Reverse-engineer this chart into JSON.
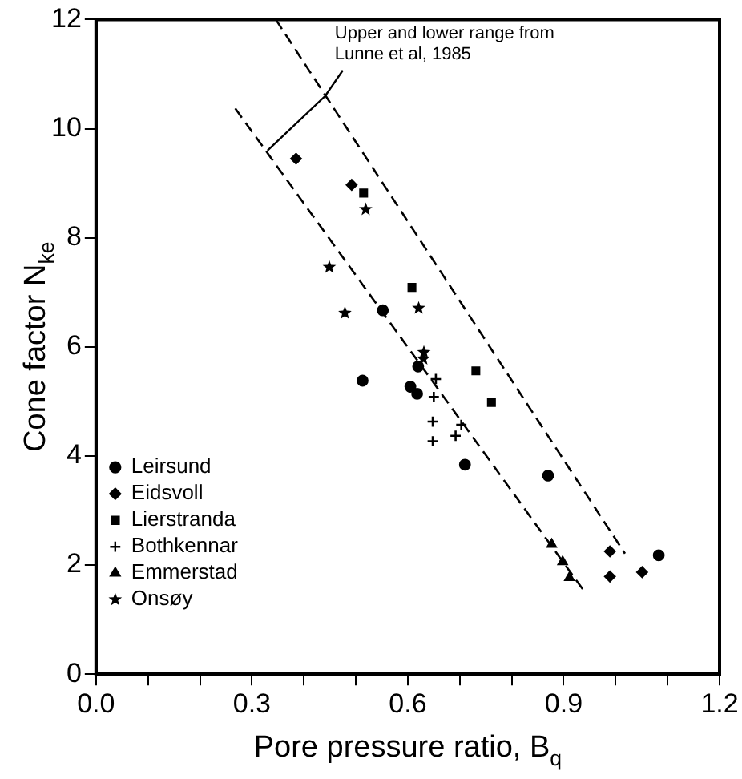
{
  "chart_data": {
    "type": "scatter",
    "xlabel": "Pore pressure ratio, B$_{q}$",
    "ylabel": "Cone factor N$_{ke}$",
    "xlim": [
      0,
      1.2
    ],
    "ylim": [
      0,
      12
    ],
    "xticks": [
      {
        "value": 0,
        "label": "0.0"
      },
      {
        "value": 0.1,
        "label": null
      },
      {
        "value": 0.2,
        "label": null
      },
      {
        "value": 0.3,
        "label": "0.3"
      },
      {
        "value": 0.4,
        "label": null
      },
      {
        "value": 0.5,
        "label": null
      },
      {
        "value": 0.6,
        "label": "0.6"
      },
      {
        "value": 0.7,
        "label": null
      },
      {
        "value": 0.8,
        "label": null
      },
      {
        "value": 0.9,
        "label": "0.9"
      },
      {
        "value": 1,
        "label": null
      },
      {
        "value": 1.1,
        "label": null
      },
      {
        "value": 1.2,
        "label": "1.2"
      }
    ],
    "yticks": [
      0,
      2,
      4,
      6,
      8,
      10,
      12
    ],
    "grid": false,
    "legend": "bottom left",
    "annotations": [
      {
        "text": "Upper and lower range from\nLunne et al, 1985",
        "x": 0.33,
        "y": 9.6
      }
    ],
    "series": [
      {
        "name": "Leirsund",
        "color": "#000000",
        "marker": "circle",
        "x": [
          0.513,
          0.605,
          0.618,
          0.62,
          0.71,
          0.552,
          0.87,
          1.083
        ],
        "values": [
          5.38,
          5.27,
          5.14,
          5.64,
          3.84,
          6.67,
          3.64,
          2.18
        ]
      },
      {
        "name": "Eidsvoll",
        "color": "#000000",
        "marker": "diamond",
        "x": [
          0.385,
          0.492,
          0.989,
          0.989,
          1.051
        ],
        "values": [
          9.45,
          8.97,
          2.25,
          1.79,
          1.87
        ]
      },
      {
        "name": "Lierstranda",
        "color": "#000000",
        "marker": "square",
        "x": [
          0.515,
          0.608,
          0.731,
          0.761
        ],
        "values": [
          8.82,
          7.09,
          5.56,
          4.98
        ]
      },
      {
        "name": "Bothkennar",
        "color": "#000000",
        "marker": "cross",
        "x": [
          0.654,
          0.65,
          0.648,
          0.648,
          0.703,
          0.692
        ],
        "values": [
          5.41,
          5.08,
          4.63,
          4.27,
          4.57,
          4.37
        ]
      },
      {
        "name": "Emmerstad",
        "color": "#000000",
        "marker": "triangle",
        "x": [
          0.877,
          0.898,
          0.911
        ],
        "values": [
          2.38,
          2.06,
          1.77
        ]
      },
      {
        "name": "Onsøy",
        "color": "#000000",
        "marker": "star",
        "x": [
          0.519,
          0.449,
          0.479,
          0.621,
          0.631,
          0.63
        ],
        "values": [
          8.52,
          7.46,
          6.62,
          6.71,
          5.9,
          5.78
        ]
      },
      {
        "type": "line",
        "color": "#000000",
        "line_style": "dashed",
        "marker": "none",
        "x": [
          0.268,
          0.941
        ],
        "values": [
          10.37,
          1.5
        ]
      },
      {
        "type": "line",
        "color": "#000000",
        "line_style": "dashed",
        "marker": "none",
        "x": [
          0.346,
          1.018
        ],
        "values": [
          12,
          2.21
        ]
      }
    ]
  }
}
